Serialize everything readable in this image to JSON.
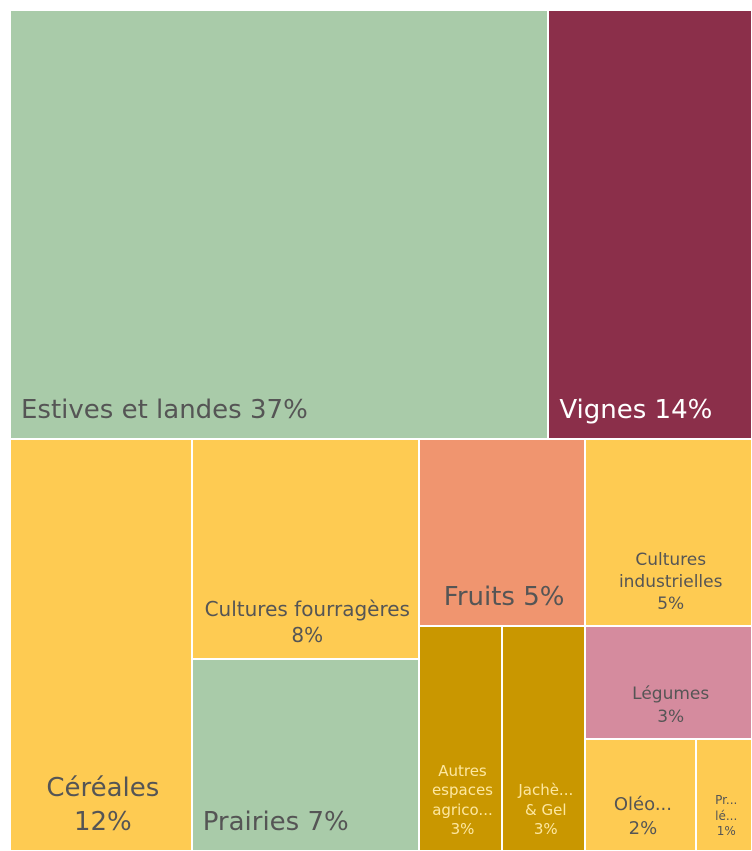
{
  "chart_data": {
    "type": "treemap",
    "categories": [
      "Estives et landes",
      "Vignes",
      "Céréales",
      "Cultures fourragères",
      "Prairies",
      "Fruits",
      "Cultures industrielles",
      "Autres espaces agrico...",
      "Jachè... & Gel",
      "Légumes",
      "Oléo...",
      "Pr... lé..."
    ],
    "values": [
      37,
      14,
      12,
      8,
      7,
      5,
      5,
      3,
      3,
      3,
      2,
      1
    ],
    "value_labels": [
      "37%",
      "14%",
      "12%",
      "8%",
      "7%",
      "5%",
      "5%",
      "3%",
      "3%",
      "3%",
      "2%",
      "1%"
    ],
    "colors": [
      "#a9cba9",
      "#8b2f4a",
      "#fecb52",
      "#fecb52",
      "#a9cba9",
      "#f0956f",
      "#fecb52",
      "#c99700",
      "#c99700",
      "#d58b9e",
      "#fecb52",
      "#fecb52"
    ]
  }
}
